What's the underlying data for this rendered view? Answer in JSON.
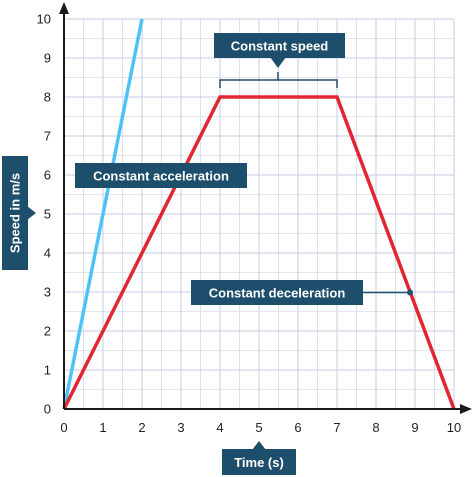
{
  "chart_data": {
    "type": "line",
    "xlabel": "Time (s)",
    "ylabel": "Speed in m/s",
    "xlim": [
      0,
      10
    ],
    "ylim": [
      0,
      10
    ],
    "x_ticks": [
      "0",
      "1",
      "2",
      "3",
      "4",
      "5",
      "6",
      "7",
      "8",
      "9",
      "10"
    ],
    "y_ticks": [
      "0",
      "1",
      "2",
      "3",
      "4",
      "5",
      "6",
      "7",
      "8",
      "9",
      "10"
    ],
    "grid": true,
    "series": [
      {
        "color": "#4fc3f7",
        "points": [
          [
            0,
            0
          ],
          [
            2,
            10
          ]
        ]
      },
      {
        "color": "#e02630",
        "points": [
          [
            0,
            0
          ],
          [
            4,
            8
          ],
          [
            7,
            8
          ],
          [
            10,
            0
          ]
        ]
      }
    ],
    "annotations": {
      "constant_speed": "Constant speed",
      "constant_acceleration": "Constant acceleration",
      "constant_deceleration": "Constant deceleration"
    },
    "colors": {
      "label_box": "#1d4e6b",
      "grid": "#c5cde6",
      "axis": "#1a1a1a"
    }
  }
}
